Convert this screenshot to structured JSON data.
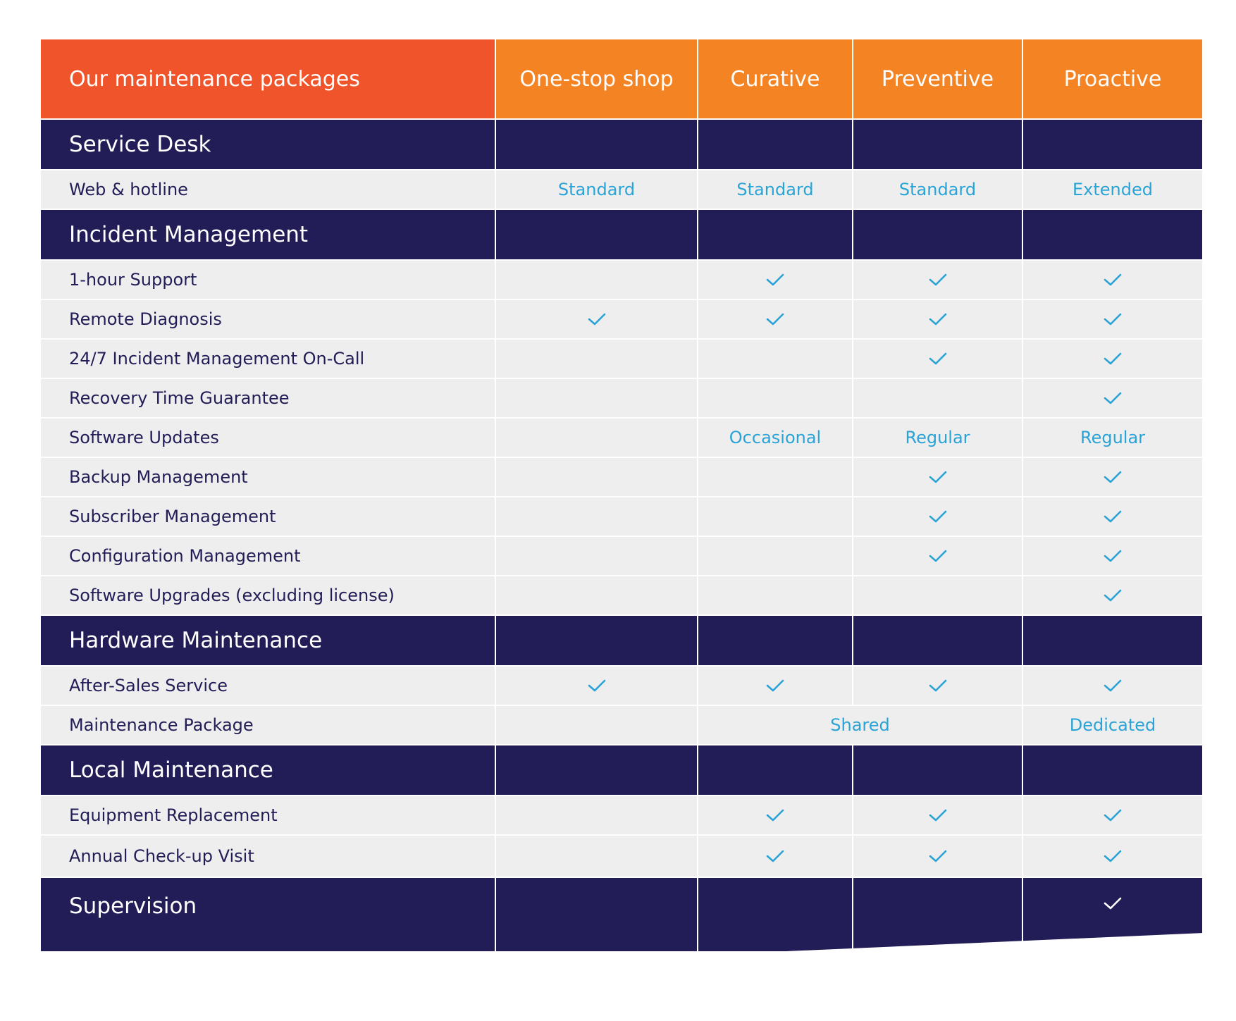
{
  "header": {
    "title": "Our maintenance packages",
    "packages": [
      "One-stop shop",
      "Curative",
      "Preventive",
      "Proactive"
    ]
  },
  "sections": [
    {
      "name": "Service Desk",
      "rows": [
        {
          "label": "Web & hotline",
          "values": [
            "Standard",
            "Standard",
            "Standard",
            "Extended"
          ]
        }
      ]
    },
    {
      "name": "Incident Management",
      "rows": [
        {
          "label": "1-hour Support",
          "values": [
            "",
            "check",
            "check",
            "check"
          ]
        },
        {
          "label": "Remote Diagnosis",
          "values": [
            "check",
            "check",
            "check",
            "check"
          ]
        },
        {
          "label": "24/7 Incident Management On-Call",
          "values": [
            "",
            "",
            "check",
            "check"
          ]
        },
        {
          "label": "Recovery Time Guarantee",
          "values": [
            "",
            "",
            "",
            "check"
          ]
        },
        {
          "label": "Software Updates",
          "values": [
            "",
            "Occasional",
            "Regular",
            "Regular"
          ]
        },
        {
          "label": "Backup Management",
          "values": [
            "",
            "",
            "check",
            "check"
          ]
        },
        {
          "label": "Subscriber Management",
          "values": [
            "",
            "",
            "check",
            "check"
          ]
        },
        {
          "label": "Configuration Management",
          "values": [
            "",
            "",
            "check",
            "check"
          ]
        },
        {
          "label": "Software Upgrades (excluding license)",
          "values": [
            "",
            "",
            "",
            "check"
          ]
        }
      ]
    },
    {
      "name": "Hardware Maintenance",
      "rows": [
        {
          "label": "After-Sales Service",
          "values": [
            "check",
            "check",
            "check",
            "check"
          ]
        },
        {
          "label": "Maintenance Package",
          "values": [
            "",
            "Shared",
            "Dedicated"
          ],
          "span": "curative-preventive"
        }
      ]
    },
    {
      "name": "Local Maintenance",
      "rows": [
        {
          "label": "Equipment Replacement",
          "values": [
            "",
            "check",
            "check",
            "check"
          ]
        },
        {
          "label": "Annual Check-up Visit",
          "values": [
            "",
            "check",
            "check",
            "check"
          ]
        }
      ]
    },
    {
      "name": "Supervision",
      "values": [
        "",
        "",
        "",
        "check"
      ],
      "rows": []
    }
  ],
  "colors": {
    "title_header": "#f0542a",
    "package_header": "#f48324",
    "section_band": "#221d56",
    "row_background": "#eeeeef",
    "value_text": "#2aa3d6",
    "label_text": "#221d56"
  },
  "icons": {
    "check": "checkmark-icon"
  }
}
